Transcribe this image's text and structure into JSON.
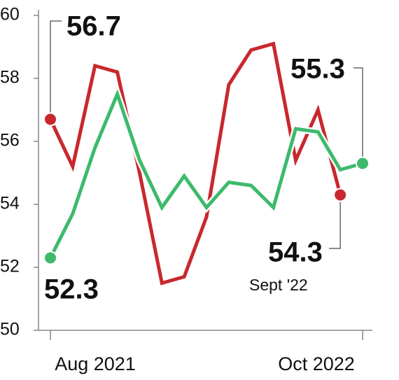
{
  "chart_data": {
    "type": "line",
    "categories": [
      "Aug 2021",
      null,
      null,
      null,
      null,
      null,
      null,
      null,
      null,
      null,
      null,
      null,
      null,
      null,
      "Oct 2022"
    ],
    "series": [
      {
        "color": "#c8282d",
        "values": [
          56.7,
          55.2,
          58.4,
          58.2,
          55.0,
          51.5,
          51.7,
          53.6,
          57.8,
          58.9,
          59.1,
          55.4,
          57.0,
          54.3,
          null
        ]
      },
      {
        "color": "#3dba6c",
        "values": [
          52.3,
          53.7,
          55.8,
          57.5,
          55.4,
          53.9,
          54.9,
          53.9,
          54.7,
          54.6,
          53.9,
          56.4,
          56.3,
          55.1,
          55.3
        ]
      }
    ],
    "annotation": "Sept '22",
    "ylim": [
      50,
      60
    ],
    "yticks": [
      50,
      52,
      54,
      56,
      58,
      60
    ],
    "grid": false
  }
}
